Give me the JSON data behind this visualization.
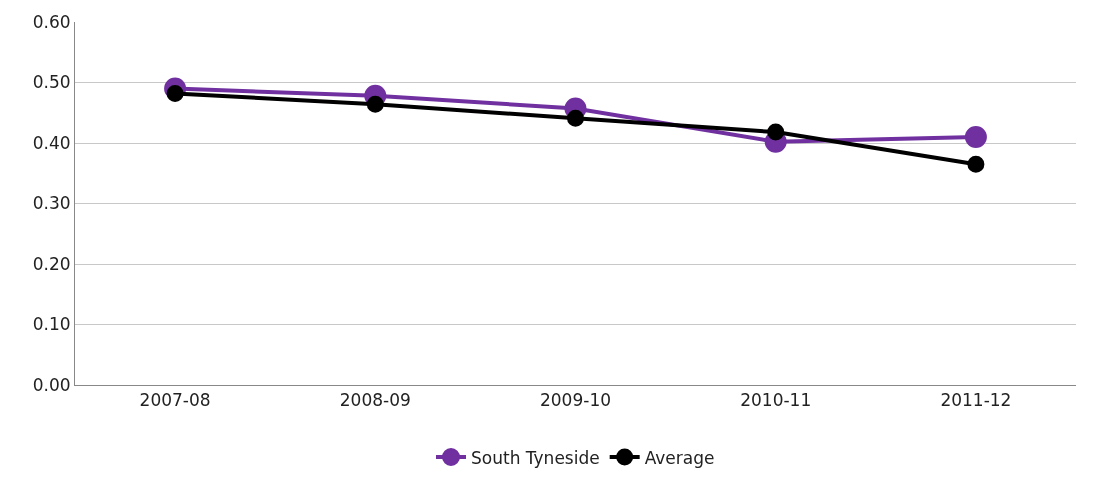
{
  "chart_data": {
    "type": "line",
    "categories": [
      "2007-08",
      "2008-09",
      "2009-10",
      "2010-11",
      "2011-12"
    ],
    "series": [
      {
        "name": "South Tyneside",
        "color": "#7030a0",
        "values": [
          0.49,
          0.478,
          0.457,
          0.402,
          0.41
        ]
      },
      {
        "name": "Average",
        "color": "#000000",
        "values": [
          0.482,
          0.464,
          0.441,
          0.418,
          0.365
        ]
      }
    ],
    "ylim": [
      0,
      0.6
    ],
    "yticks": [
      {
        "value": 0,
        "label": "0.00"
      },
      {
        "value": 0.1,
        "label": "0.10"
      },
      {
        "value": 0.2,
        "label": "0.20"
      },
      {
        "value": 0.3,
        "label": "0.30"
      },
      {
        "value": 0.4,
        "label": "0.40"
      },
      {
        "value": 0.5,
        "label": "0.50"
      },
      {
        "value": 0.6,
        "label": "0.60"
      }
    ],
    "grid": "y",
    "legend": "bottom",
    "marker": "circle",
    "line_style": "solid"
  }
}
